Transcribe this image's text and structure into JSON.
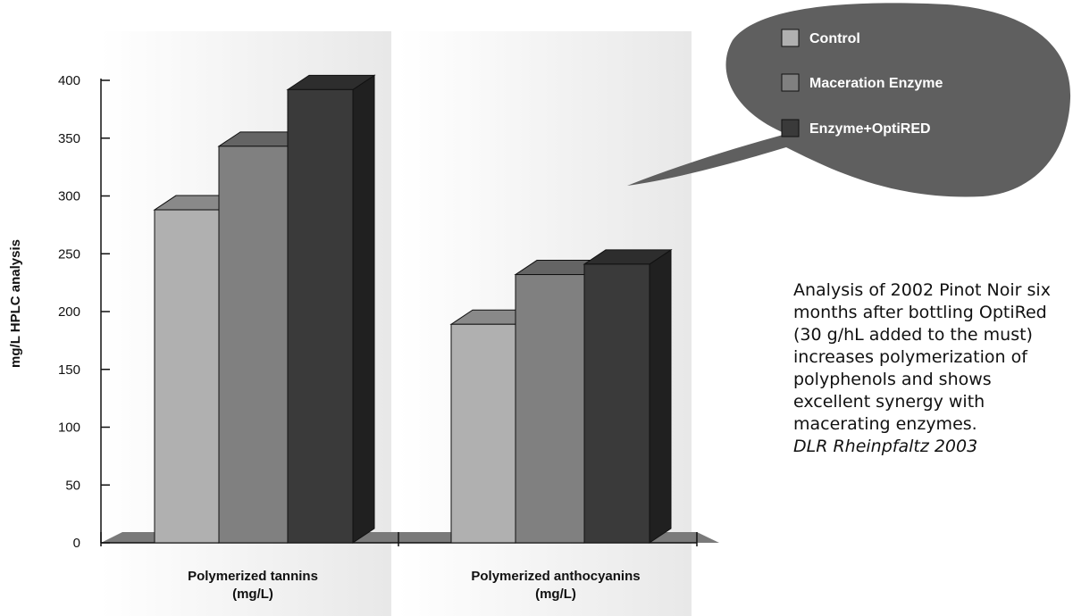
{
  "chart_data": {
    "type": "bar",
    "categories": [
      "Polymerized tannins\n(mg/L)",
      "Polymerized anthocyanins\n(mg/L)"
    ],
    "series": [
      {
        "name": "Control",
        "values": [
          288,
          189
        ],
        "color": "#b0b0b0"
      },
      {
        "name": "Maceration Enzyme",
        "values": [
          343,
          232
        ],
        "color": "#808080"
      },
      {
        "name": "Enzyme+OptiRED",
        "values": [
          392,
          241
        ],
        "color": "#3a3a3a"
      }
    ],
    "ylabel": "mg/L HPLC analysis",
    "xlabel": "",
    "title": "",
    "ylim": [
      0,
      400
    ],
    "yticks": [
      0,
      50,
      100,
      150,
      200,
      250,
      300,
      350,
      400
    ],
    "legend_position": "top-right",
    "grid": false,
    "three_d": true
  },
  "annotation": {
    "text": "Analysis of 2002 Pinot Noir six months after bottling OptiRed (30 g/hL added to the must) increases polymerization of polyphenols and shows excellent synergy with macerating enzymes.",
    "source": "DLR Rheinpfaltz 2003"
  },
  "colors": {
    "legend_bubble": "#5f5f5f",
    "band": "#ececec",
    "floor": "#7a7a7a"
  }
}
